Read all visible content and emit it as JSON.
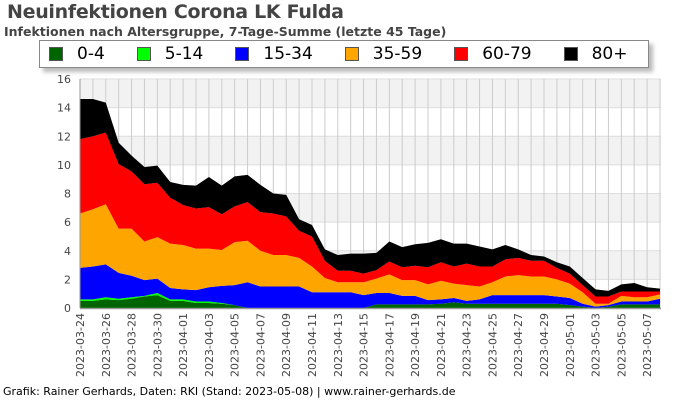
{
  "chart_data": {
    "type": "area",
    "stacked": true,
    "title": "Neuinfektionen Corona LK Fulda",
    "subtitle": "Infektionen nach Altersgruppe, 7-Tage-Summe (letzte 45 Tage)",
    "xlabel": "",
    "ylabel": "",
    "ylim": [
      0,
      16
    ],
    "y_ticks": [
      0,
      2,
      4,
      6,
      8,
      10,
      12,
      14,
      16
    ],
    "grid": true,
    "legend_position": "top",
    "x_tick_labels": [
      "2023-03-24",
      "2023-03-26",
      "2023-03-28",
      "2023-03-30",
      "2023-04-01",
      "2023-04-03",
      "2023-04-05",
      "2023-04-07",
      "2023-04-09",
      "2023-04-11",
      "2023-04-13",
      "2023-04-15",
      "2023-04-17",
      "2023-04-19",
      "2023-04-21",
      "2023-04-23",
      "2023-04-25",
      "2023-04-27",
      "2023-04-29",
      "2023-05-01",
      "2023-05-03",
      "2023-05-05",
      "2023-05-07"
    ],
    "series": [
      {
        "name": "0-4",
        "color": "#006400",
        "values": [
          0.5,
          0.5,
          0.6,
          0.55,
          0.65,
          0.8,
          0.9,
          0.5,
          0.5,
          0.35,
          0.35,
          0.3,
          0.2,
          0,
          0,
          0,
          0,
          0,
          0,
          0,
          0,
          0,
          0,
          0.25,
          0.25,
          0.25,
          0.25,
          0.25,
          0.3,
          0.4,
          0.3,
          0.3,
          0.3,
          0.3,
          0.3,
          0.3,
          0.3,
          0.3,
          0.2,
          0.1,
          0,
          0.1,
          0.25,
          0.25,
          0.25,
          0.25
        ]
      },
      {
        "name": "5-14",
        "color": "#00ff00",
        "values": [
          0.1,
          0.1,
          0.15,
          0.1,
          0.1,
          0.05,
          0.15,
          0.1,
          0.1,
          0.1,
          0.1,
          0.05,
          0,
          0,
          0,
          0,
          0,
          0,
          0,
          0,
          0,
          0,
          0,
          0,
          0,
          0,
          0,
          0,
          0,
          0,
          0,
          0,
          0,
          0,
          0,
          0,
          0,
          0,
          0,
          0,
          0,
          0,
          0,
          0,
          0,
          0
        ]
      },
      {
        "name": "15-34",
        "color": "#0000ff",
        "values": [
          2.2,
          2.3,
          2.3,
          1.8,
          1.5,
          1.1,
          1.0,
          0.8,
          0.7,
          0.8,
          1.0,
          1.2,
          1.4,
          1.8,
          1.5,
          1.5,
          1.5,
          1.5,
          1.1,
          1.1,
          1.1,
          1.1,
          0.9,
          0.8,
          0.8,
          0.6,
          0.6,
          0.3,
          0.3,
          0.3,
          0.2,
          0.3,
          0.6,
          0.6,
          0.6,
          0.6,
          0.6,
          0.5,
          0.5,
          0.2,
          0.1,
          0.1,
          0.2,
          0.2,
          0.2,
          0.4
        ]
      },
      {
        "name": "35-59",
        "color": "#ffa500",
        "values": [
          3.8,
          4.0,
          4.2,
          3.1,
          3.3,
          2.7,
          2.9,
          3.1,
          3.1,
          2.9,
          2.7,
          2.5,
          3.0,
          2.9,
          2.5,
          2.2,
          2.2,
          2.0,
          1.8,
          1.0,
          0.7,
          0.7,
          0.9,
          1.0,
          1.3,
          1.1,
          1.1,
          1.1,
          1.3,
          1.0,
          1.1,
          0.9,
          0.9,
          1.3,
          1.4,
          1.3,
          1.3,
          1.2,
          1.0,
          0.8,
          0.2,
          0.1,
          0.4,
          0.3,
          0.3,
          0.3
        ]
      },
      {
        "name": "60-79",
        "color": "#ff0000",
        "values": [
          5.2,
          5.1,
          5.0,
          4.5,
          4.0,
          4.0,
          3.8,
          3.2,
          2.8,
          2.8,
          2.9,
          2.5,
          2.5,
          2.7,
          2.7,
          2.9,
          2.7,
          1.9,
          2.1,
          1.2,
          0.8,
          0.8,
          0.6,
          0.6,
          0.9,
          0.9,
          1.0,
          1.2,
          1.3,
          1.2,
          1.5,
          1.4,
          1.1,
          1.2,
          1.2,
          1.1,
          1.1,
          0.8,
          0.7,
          0.5,
          0.5,
          0.5,
          0.3,
          0.4,
          0.4,
          0.2
        ]
      },
      {
        "name": "80+",
        "color": "#000000",
        "values": [
          2.8,
          2.6,
          2.1,
          1.5,
          1.1,
          1.2,
          1.2,
          1.1,
          1.4,
          1.6,
          2.1,
          2.0,
          2.1,
          1.9,
          1.9,
          1.4,
          1.5,
          0.8,
          0.8,
          0.8,
          1.1,
          1.2,
          1.4,
          1.2,
          1.4,
          1.4,
          1.5,
          1.7,
          1.6,
          1.6,
          1.4,
          1.4,
          1.2,
          1.0,
          0.6,
          0.4,
          0.3,
          0.4,
          0.5,
          0.5,
          0.5,
          0.4,
          0.5,
          0.6,
          0.3,
          0.2
        ]
      }
    ]
  },
  "footer": "Grafik: Rainer Gerhards, Daten: RKI (Stand: 2023-05-08) | www.rainer-gerhards.de"
}
